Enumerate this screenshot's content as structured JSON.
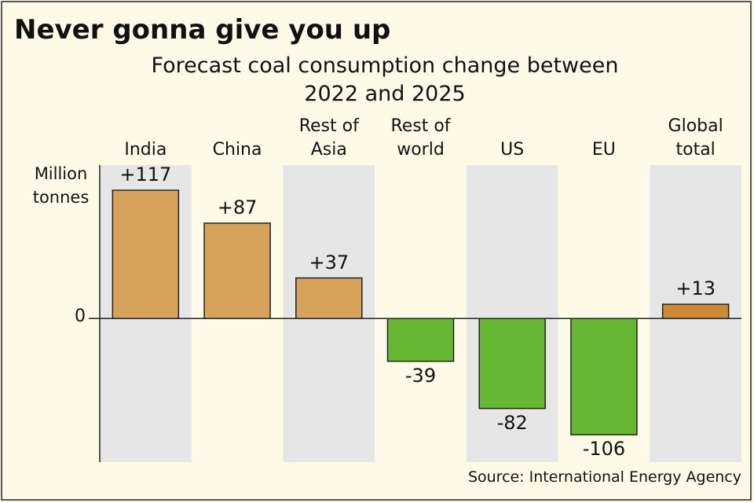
{
  "chart_data": {
    "type": "bar",
    "title": "Never gonna give you up",
    "subtitle": "Forecast coal consumption change between 2022 and 2025",
    "y_label": "Million tonnes",
    "source": "Source: International Energy Agency",
    "categories": [
      "India",
      "China",
      "Rest of Asia",
      "Rest of world",
      "US",
      "EU",
      "Global total"
    ],
    "values": [
      117,
      87,
      37,
      -39,
      -82,
      -106,
      13
    ],
    "value_labels": [
      "+117",
      "+87",
      "+37",
      "-39",
      "-82",
      "-106",
      "+13"
    ],
    "colors": [
      "#d6a25c",
      "#d6a25c",
      "#d6a25c",
      "#66b833",
      "#66b833",
      "#66b833",
      "#cc8a35"
    ],
    "ylim": [
      -131,
      140
    ],
    "yticks": [
      0
    ],
    "grid": false
  }
}
